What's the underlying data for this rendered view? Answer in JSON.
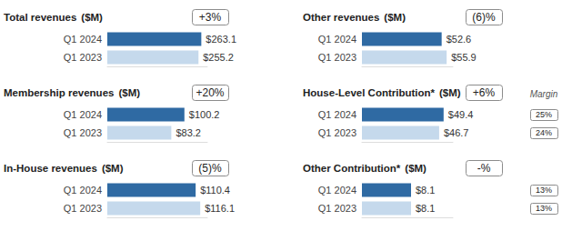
{
  "chart_data": [
    {
      "type": "bar",
      "title": "Total revenues ($M)",
      "orientation": "horizontal",
      "categories": [
        "Q1 2024",
        "Q1 2023"
      ],
      "values": [
        263.1,
        255.2
      ],
      "value_labels": [
        "$263.1",
        "$255.2"
      ],
      "colors": [
        "#2f6aa3",
        "#c5d9ec"
      ],
      "xlim": [
        0,
        280
      ],
      "data_labels": true,
      "tick_labels": "y",
      "grid": false,
      "annotation": "+3%"
    },
    {
      "type": "bar",
      "title": "Other revenues ($M)",
      "orientation": "horizontal",
      "categories": [
        "Q1 2024",
        "Q1 2023"
      ],
      "values": [
        52.6,
        55.9
      ],
      "value_labels": [
        "$52.6",
        "$55.9"
      ],
      "colors": [
        "#2f6aa3",
        "#c5d9ec"
      ],
      "xlim": [
        0,
        60
      ],
      "data_labels": true,
      "tick_labels": "y",
      "grid": false,
      "annotation": "(6)%"
    },
    {
      "type": "bar",
      "title": "Membership revenues ($M)",
      "orientation": "horizontal",
      "categories": [
        "Q1 2024",
        "Q1 2023"
      ],
      "values": [
        100.2,
        83.2
      ],
      "value_labels": [
        "$100.2",
        "$83.2"
      ],
      "colors": [
        "#2f6aa3",
        "#c5d9ec"
      ],
      "xlim": [
        0,
        130
      ],
      "data_labels": true,
      "tick_labels": "y",
      "grid": false,
      "annotation": "+20%"
    },
    {
      "type": "bar",
      "title": "House-Level Contribution* ($M)",
      "orientation": "horizontal",
      "categories": [
        "Q1 2024",
        "Q1 2023"
      ],
      "values": [
        49.4,
        46.7
      ],
      "value_labels": [
        "$49.4",
        "$46.7"
      ],
      "colors": [
        "#2f6aa3",
        "#c5d9ec"
      ],
      "xlim": [
        0,
        55
      ],
      "data_labels": true,
      "tick_labels": "y",
      "grid": false,
      "annotation": "+6%",
      "margin_title": "Margin",
      "margins": [
        25,
        24
      ],
      "margin_labels": [
        "25%",
        "24%"
      ]
    },
    {
      "type": "bar",
      "title": "In-House revenues ($M)",
      "orientation": "horizontal",
      "categories": [
        "Q1 2024",
        "Q1 2023"
      ],
      "values": [
        110.4,
        116.1
      ],
      "value_labels": [
        "$110.4",
        "$116.1"
      ],
      "colors": [
        "#2f6aa3",
        "#c5d9ec"
      ],
      "xlim": [
        0,
        125
      ],
      "data_labels": true,
      "tick_labels": "y",
      "grid": false,
      "annotation": "(5)%"
    },
    {
      "type": "bar",
      "title": "Other Contribution* ($M)",
      "orientation": "horizontal",
      "categories": [
        "Q1 2024",
        "Q1 2023"
      ],
      "values": [
        8.1,
        8.1
      ],
      "value_labels": [
        "$8.1",
        "$8.1"
      ],
      "colors": [
        "#2f6aa3",
        "#c5d9ec"
      ],
      "xlim": [
        0,
        15
      ],
      "data_labels": true,
      "tick_labels": "y",
      "grid": false,
      "annotation": "-%",
      "margins": [
        13,
        13
      ],
      "margin_labels": [
        "13%",
        "13%"
      ]
    }
  ]
}
